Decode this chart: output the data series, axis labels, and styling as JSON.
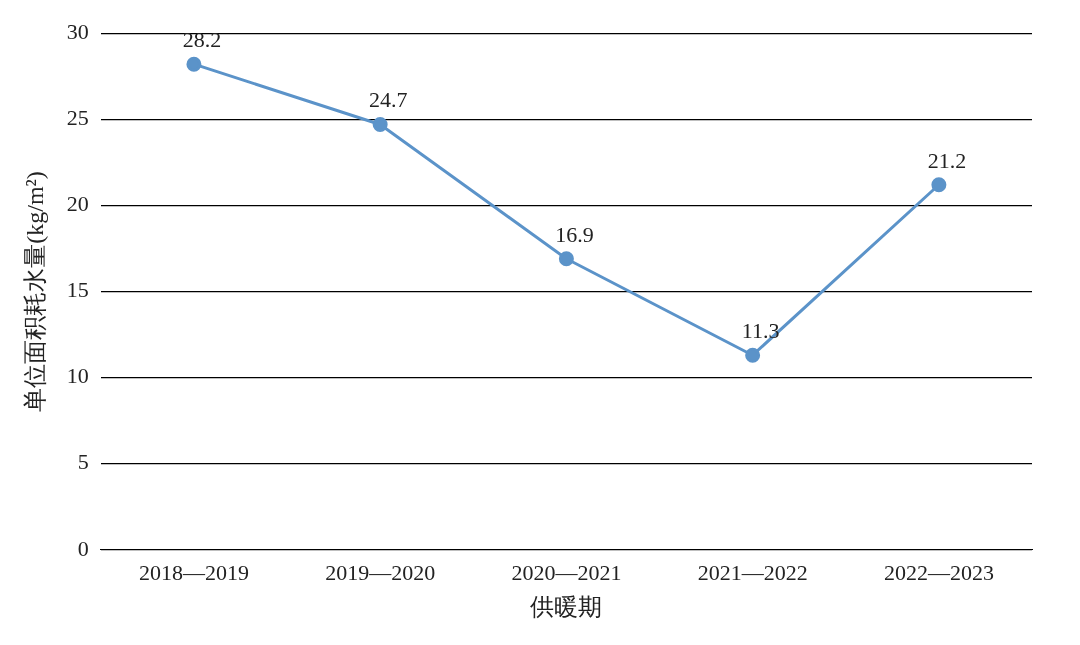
{
  "chart_data": {
    "type": "line",
    "xlabel": "供暖期",
    "ylabel": "单位面积耗水量(kg/m²)",
    "categories": [
      "2018—2019",
      "2019—2020",
      "2020—2021",
      "2021—2022",
      "2022—2023"
    ],
    "series": [
      {
        "color": "#5b93c9",
        "values": [
          28.2,
          24.7,
          16.9,
          11.3,
          21.2
        ]
      }
    ],
    "ylim": [
      0,
      30
    ],
    "yticks": [
      0,
      5,
      10,
      15,
      20,
      25,
      30
    ],
    "grid": "y",
    "marker": "circle",
    "line_style": "solid",
    "data_labels": true,
    "legend": false
  }
}
